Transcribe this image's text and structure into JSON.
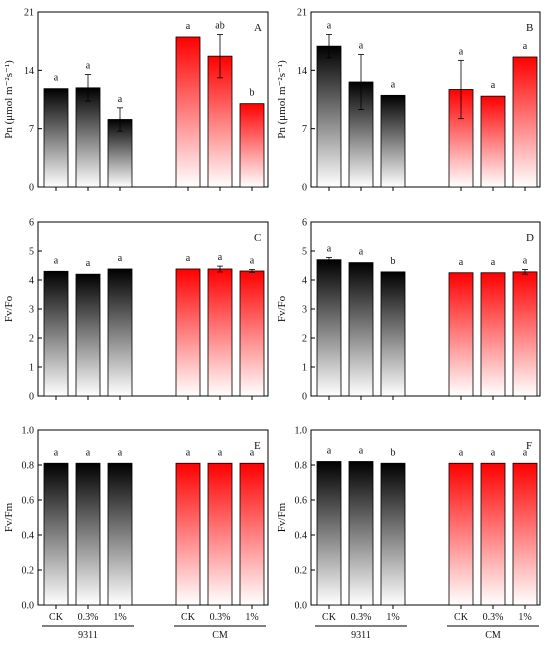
{
  "groups": [
    {
      "label": "9311",
      "categories": [
        "CK",
        "0.3%",
        "1%"
      ]
    },
    {
      "label": "CM",
      "categories": [
        "CK",
        "0.3%",
        "1%"
      ]
    }
  ],
  "colors": {
    "group1": "#000000",
    "group2": "#ff0000",
    "fade": "#ffffff"
  },
  "chart_data": [
    {
      "panel": "A",
      "type": "bar",
      "ylabel": "Pn (μmol m⁻²s⁻¹)",
      "ylim": [
        0,
        21
      ],
      "yticks": [
        "0",
        "7",
        "14",
        "21"
      ],
      "values": [
        11.8,
        11.9,
        8.1,
        18.0,
        15.7,
        10.0
      ],
      "errors": [
        0.0,
        1.6,
        1.4,
        0.0,
        2.6,
        0.0
      ],
      "letters": [
        "a",
        "a",
        "a",
        "a",
        "ab",
        "b"
      ]
    },
    {
      "panel": "B",
      "type": "bar",
      "ylabel": "Pn (μmol m⁻²s⁻¹)",
      "ylim": [
        0,
        21
      ],
      "yticks": [
        "0",
        "7",
        "14",
        "21"
      ],
      "values": [
        16.9,
        12.6,
        11.0,
        11.7,
        10.9,
        15.6
      ],
      "errors": [
        1.4,
        3.3,
        0.0,
        3.5,
        0.0,
        0.0
      ],
      "letters": [
        "a",
        "a",
        "a",
        "a",
        "a",
        "a"
      ]
    },
    {
      "panel": "C",
      "type": "bar",
      "ylabel": "Fv/Fo",
      "ylim": [
        0,
        6
      ],
      "yticks": [
        "0",
        "1",
        "2",
        "3",
        "4",
        "5",
        "6"
      ],
      "values": [
        4.3,
        4.2,
        4.38,
        4.38,
        4.38,
        4.31
      ],
      "errors": [
        0.0,
        0.0,
        0.0,
        0.0,
        0.1,
        0.05
      ],
      "letters": [
        "a",
        "a",
        "a",
        "a",
        "a",
        "a"
      ]
    },
    {
      "panel": "D",
      "type": "bar",
      "ylabel": "Fv/Fo",
      "ylim": [
        0,
        6
      ],
      "yticks": [
        "0",
        "1",
        "2",
        "3",
        "4",
        "5",
        "6"
      ],
      "values": [
        4.7,
        4.6,
        4.28,
        4.25,
        4.25,
        4.28
      ],
      "errors": [
        0.08,
        0.0,
        0.0,
        0.0,
        0.0,
        0.08
      ],
      "letters": [
        "a",
        "a",
        "b",
        "a",
        "a",
        "a"
      ]
    },
    {
      "panel": "E",
      "type": "bar",
      "ylabel": "Fv/Fm",
      "ylim": [
        0,
        1.0
      ],
      "yticks": [
        "0.0",
        "0.2",
        "0.4",
        "0.6",
        "0.8",
        "1.0"
      ],
      "values": [
        0.81,
        0.81,
        0.81,
        0.81,
        0.81,
        0.81
      ],
      "errors": [
        0,
        0,
        0,
        0,
        0,
        0
      ],
      "letters": [
        "a",
        "a",
        "a",
        "a",
        "a",
        "a"
      ]
    },
    {
      "panel": "F",
      "type": "bar",
      "ylabel": "Fv/Fm",
      "ylim": [
        0,
        1.0
      ],
      "yticks": [
        "0.0",
        "0.2",
        "0.4",
        "0.6",
        "0.8",
        "1.0"
      ],
      "values": [
        0.82,
        0.82,
        0.81,
        0.81,
        0.81,
        0.81
      ],
      "errors": [
        0,
        0,
        0,
        0,
        0,
        0
      ],
      "letters": [
        "a",
        "a",
        "b",
        "a",
        "a",
        "a"
      ]
    }
  ]
}
